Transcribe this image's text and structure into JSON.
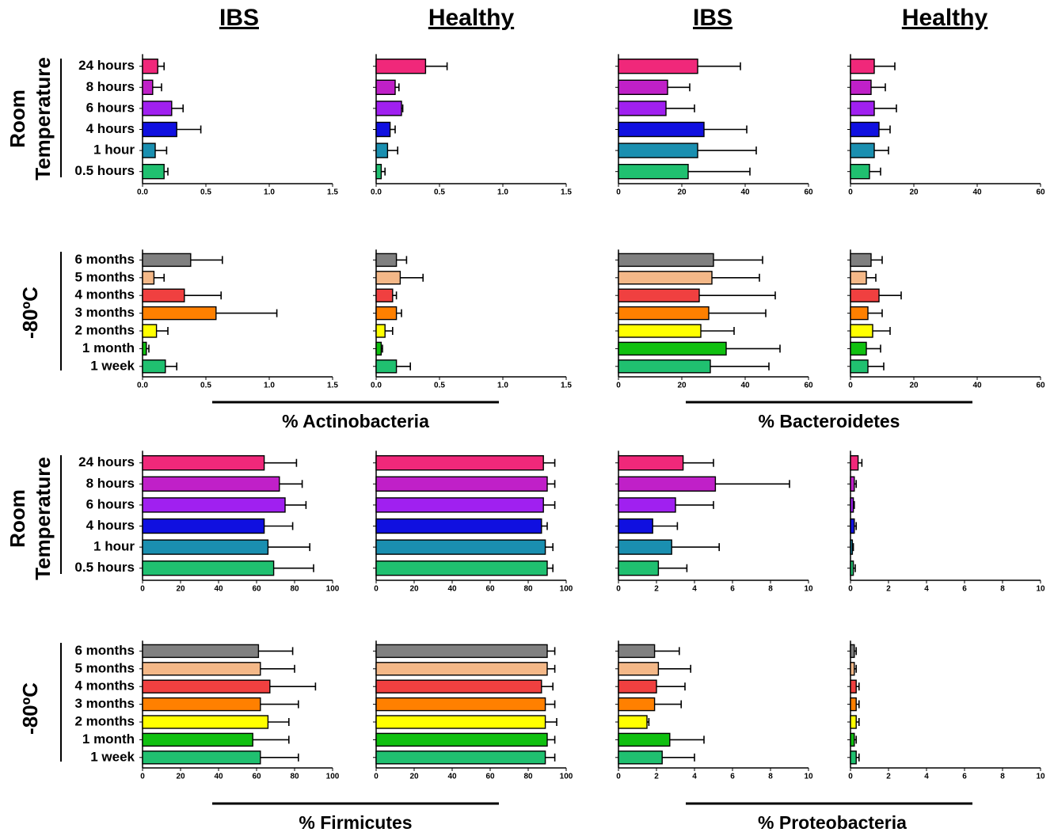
{
  "headers": [
    "IBS",
    "Healthy",
    "IBS",
    "Healthy"
  ],
  "row_labels": [
    [
      "Room",
      "Temperature"
    ],
    [
      "-80ºC"
    ],
    [
      "Room",
      "Temperature"
    ],
    [
      "-80ºC"
    ]
  ],
  "phyla": [
    "% Actinobacteria",
    "% Bacteroidetes",
    "% Firmicutes",
    "% Proteobacteria"
  ],
  "chart_data": [
    {
      "type": "bar",
      "orientation": "horizontal",
      "categories": [
        "24 hours",
        "8 hours",
        "6 hours",
        "4 hours",
        "1 hour",
        "0.5 hours"
      ],
      "colors": [
        "#f0287a",
        "#c020c8",
        "#a020f0",
        "#1010e0",
        "#1a8fb0",
        "#20c070"
      ],
      "values": [
        0.12,
        0.08,
        0.23,
        0.27,
        0.1,
        0.17
      ],
      "errors": [
        0.05,
        0.07,
        0.09,
        0.19,
        0.09,
        0.03
      ],
      "xlim": [
        0,
        1.5
      ],
      "xticks": [
        {
          "value": 0,
          "label": "0.0"
        },
        0.5,
        {
          "value": 1,
          "label": "1.0"
        },
        1.5
      ]
    },
    {
      "type": "bar",
      "orientation": "horizontal",
      "colors": [
        "#f0287a",
        "#c020c8",
        "#a020f0",
        "#1010e0",
        "#1a8fb0",
        "#20c070"
      ],
      "values": [
        0.39,
        0.15,
        0.2,
        0.11,
        0.09,
        0.04
      ],
      "errors": [
        0.17,
        0.03,
        0.01,
        0.04,
        0.08,
        0.03
      ],
      "xlim": [
        0,
        1.5
      ],
      "xticks": [
        {
          "value": 0,
          "label": "0.0"
        },
        0.5,
        {
          "value": 1,
          "label": "1.0"
        },
        1.5
      ]
    },
    {
      "type": "bar",
      "orientation": "horizontal",
      "colors": [
        "#f0287a",
        "#c020c8",
        "#a020f0",
        "#1010e0",
        "#1a8fb0",
        "#20c070"
      ],
      "values": [
        25,
        15.5,
        15,
        27,
        25,
        22
      ],
      "errors": [
        13.5,
        7,
        9,
        13.5,
        18.5,
        19.5
      ],
      "xlim": [
        0,
        60
      ],
      "xticks": [
        0,
        20,
        40,
        60
      ]
    },
    {
      "type": "bar",
      "orientation": "horizontal",
      "colors": [
        "#f0287a",
        "#c020c8",
        "#a020f0",
        "#1010e0",
        "#1a8fb0",
        "#20c070"
      ],
      "values": [
        7.5,
        6.5,
        7.5,
        9,
        7.5,
        6
      ],
      "errors": [
        6.5,
        4.5,
        7,
        3.5,
        4.5,
        3.5
      ],
      "xlim": [
        0,
        60
      ],
      "xticks": [
        0,
        20,
        40,
        60
      ]
    },
    {
      "type": "bar",
      "orientation": "horizontal",
      "categories": [
        "6 months",
        "5 months",
        "4 months",
        "3 months",
        "2 months",
        "1 month",
        "1 week"
      ],
      "colors": [
        "#808080",
        "#f4b888",
        "#f04040",
        "#ff8000",
        "#ffff00",
        "#10c010",
        "#20c070"
      ],
      "values": [
        0.38,
        0.09,
        0.33,
        0.58,
        0.11,
        0.03,
        0.18
      ],
      "errors": [
        0.25,
        0.08,
        0.29,
        0.48,
        0.09,
        0.02,
        0.09
      ],
      "xlim": [
        0,
        1.5
      ],
      "xticks": [
        {
          "value": 0,
          "label": "0.0"
        },
        0.5,
        {
          "value": 1,
          "label": "1.0"
        },
        1.5
      ]
    },
    {
      "type": "bar",
      "orientation": "horizontal",
      "colors": [
        "#808080",
        "#f4b888",
        "#f04040",
        "#ff8000",
        "#ffff00",
        "#10c010",
        "#20c070"
      ],
      "values": [
        0.16,
        0.19,
        0.13,
        0.16,
        0.07,
        0.04,
        0.16
      ],
      "errors": [
        0.08,
        0.18,
        0.03,
        0.04,
        0.06,
        0.01,
        0.11
      ],
      "xlim": [
        0,
        1.5
      ],
      "xticks": [
        {
          "value": 0,
          "label": "0.0"
        },
        0.5,
        {
          "value": 1,
          "label": "1.0"
        },
        1.5
      ]
    },
    {
      "type": "bar",
      "orientation": "horizontal",
      "colors": [
        "#808080",
        "#f4b888",
        "#f04040",
        "#ff8000",
        "#ffff00",
        "#10c010",
        "#20c070"
      ],
      "values": [
        30,
        29.5,
        25.5,
        28.5,
        26,
        34,
        29
      ],
      "errors": [
        15.5,
        15,
        24,
        18,
        10.5,
        17,
        18.5
      ],
      "xlim": [
        0,
        60
      ],
      "xticks": [
        0,
        20,
        40,
        60
      ]
    },
    {
      "type": "bar",
      "orientation": "horizontal",
      "colors": [
        "#808080",
        "#f4b888",
        "#f04040",
        "#ff8000",
        "#ffff00",
        "#10c010",
        "#20c070"
      ],
      "values": [
        6.5,
        5,
        9,
        5.5,
        7,
        5,
        5.5
      ],
      "errors": [
        3.5,
        3,
        7,
        4.5,
        5.5,
        4.5,
        5
      ],
      "xlim": [
        0,
        60
      ],
      "xticks": [
        0,
        20,
        40,
        60
      ]
    },
    {
      "type": "bar",
      "orientation": "horizontal",
      "categories": [
        "24 hours",
        "8 hours",
        "6 hours",
        "4 hours",
        "1 hour",
        "0.5 hours"
      ],
      "colors": [
        "#f0287a",
        "#c020c8",
        "#a020f0",
        "#1010e0",
        "#1a8fb0",
        "#20c070"
      ],
      "values": [
        64,
        72,
        75,
        64,
        66,
        69
      ],
      "errors": [
        17,
        12,
        11,
        15,
        22,
        21
      ],
      "xlim": [
        0,
        100
      ],
      "xticks": [
        0,
        20,
        40,
        60,
        80,
        100
      ]
    },
    {
      "type": "bar",
      "orientation": "horizontal",
      "colors": [
        "#f0287a",
        "#c020c8",
        "#a020f0",
        "#1010e0",
        "#1a8fb0",
        "#20c070"
      ],
      "values": [
        88,
        90,
        88,
        87,
        89,
        90
      ],
      "errors": [
        6,
        4,
        6,
        3,
        4,
        3
      ],
      "xlim": [
        0,
        100
      ],
      "xticks": [
        0,
        20,
        40,
        60,
        80,
        100
      ]
    },
    {
      "type": "bar",
      "orientation": "horizontal",
      "colors": [
        "#f0287a",
        "#c020c8",
        "#a020f0",
        "#1010e0",
        "#1a8fb0",
        "#20c070"
      ],
      "values": [
        3.4,
        5.1,
        3.0,
        1.8,
        2.8,
        2.1
      ],
      "errors": [
        1.6,
        3.9,
        2.0,
        1.3,
        2.5,
        1.5
      ],
      "xlim": [
        0,
        10
      ],
      "xticks": [
        0,
        2,
        4,
        6,
        8,
        10
      ]
    },
    {
      "type": "bar",
      "orientation": "horizontal",
      "colors": [
        "#f0287a",
        "#c020c8",
        "#a020f0",
        "#1010e0",
        "#1a8fb0",
        "#20c070"
      ],
      "values": [
        0.4,
        0.2,
        0.15,
        0.2,
        0.1,
        0.15
      ],
      "errors": [
        0.2,
        0.1,
        0.05,
        0.1,
        0.05,
        0.1
      ],
      "xlim": [
        0,
        10
      ],
      "xticks": [
        0,
        2,
        4,
        6,
        8,
        10
      ]
    },
    {
      "type": "bar",
      "orientation": "horizontal",
      "categories": [
        "6 months",
        "5 months",
        "4 months",
        "3 months",
        "2 months",
        "1 month",
        "1 week"
      ],
      "colors": [
        "#808080",
        "#f4b888",
        "#f04040",
        "#ff8000",
        "#ffff00",
        "#10c010",
        "#20c070"
      ],
      "values": [
        61,
        62,
        67,
        62,
        66,
        58,
        62
      ],
      "errors": [
        18,
        18,
        24,
        20,
        11,
        19,
        20
      ],
      "xlim": [
        0,
        100
      ],
      "xticks": [
        0,
        20,
        40,
        60,
        80,
        100
      ]
    },
    {
      "type": "bar",
      "orientation": "horizontal",
      "colors": [
        "#808080",
        "#f4b888",
        "#f04040",
        "#ff8000",
        "#ffff00",
        "#10c010",
        "#20c070"
      ],
      "values": [
        90,
        90,
        87,
        89,
        89,
        90,
        89
      ],
      "errors": [
        4,
        4,
        6,
        5,
        6,
        4,
        5
      ],
      "xlim": [
        0,
        100
      ],
      "xticks": [
        0,
        20,
        40,
        60,
        80,
        100
      ]
    },
    {
      "type": "bar",
      "orientation": "horizontal",
      "colors": [
        "#808080",
        "#f4b888",
        "#f04040",
        "#ff8000",
        "#ffff00",
        "#10c010",
        "#20c070"
      ],
      "values": [
        1.9,
        2.1,
        2.0,
        1.9,
        1.5,
        2.7,
        2.3
      ],
      "errors": [
        1.3,
        1.7,
        1.5,
        1.4,
        0.1,
        1.8,
        1.7
      ],
      "xlim": [
        0,
        10
      ],
      "xticks": [
        0,
        2,
        4,
        6,
        8,
        10
      ]
    },
    {
      "type": "bar",
      "orientation": "horizontal",
      "colors": [
        "#808080",
        "#f4b888",
        "#f04040",
        "#ff8000",
        "#ffff00",
        "#10c010",
        "#20c070"
      ],
      "values": [
        0.2,
        0.2,
        0.3,
        0.3,
        0.3,
        0.2,
        0.3
      ],
      "errors": [
        0.1,
        0.1,
        0.15,
        0.15,
        0.15,
        0.1,
        0.15
      ],
      "xlim": [
        0,
        10
      ],
      "xticks": [
        0,
        2,
        4,
        6,
        8,
        10
      ]
    }
  ]
}
